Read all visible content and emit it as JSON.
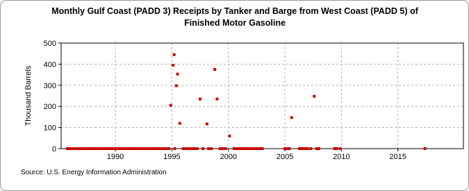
{
  "chart_data": {
    "type": "scatter",
    "title": [
      "Monthly Gulf Coast (PADD 3) Receipts by Tanker and Barge from West Coast (PADD 5) of",
      "Finished Motor Gasoline"
    ],
    "y_label": "Thousand Barrels",
    "source": "Source: U.S. Energy Information Administration",
    "color": "#cc0000",
    "grid": true,
    "xlim": [
      1985.2,
      2020.8
    ],
    "xticks": [
      1990,
      1995,
      2000,
      2005,
      2010,
      2015
    ],
    "ylim": [
      0,
      500
    ],
    "yticks": [
      0,
      100,
      200,
      300,
      400,
      500
    ],
    "x": [
      1985.75,
      1986,
      1986.25,
      1986.5,
      1986.75,
      1987,
      1987.25,
      1987.5,
      1987.75,
      1988,
      1988.25,
      1988.5,
      1988.75,
      1989,
      1989.25,
      1989.5,
      1989.75,
      1990,
      1990.25,
      1990.5,
      1990.75,
      1991,
      1991.25,
      1991.5,
      1991.75,
      1992,
      1992.25,
      1992.5,
      1992.75,
      1993,
      1993.25,
      1993.5,
      1993.75,
      1994,
      1994.25,
      1994.5,
      1994.75,
      1995.25,
      1996,
      1996.25,
      1996.5,
      1996.75,
      1997,
      1997.25,
      1997.75,
      1998.25,
      1998.5,
      1999.25,
      1999.5,
      1999.75,
      2000.5,
      2000.75,
      2001,
      2001.25,
      2001.5,
      2001.75,
      2002,
      2002.25,
      2002.5,
      2002.75,
      2003,
      2005,
      2005.2,
      2005.4,
      2006.3,
      2006.5,
      2006.7,
      2006.8,
      2007,
      2007.3,
      2007.8,
      2008,
      2009.4,
      2009.6,
      2009.9,
      2017.4,
      1994.9,
      1995.2,
      1995.1,
      1995.5,
      1995.4,
      1995.7,
      1997.5,
      1998.1,
      1998.8,
      1999,
      2000.1,
      2005.6,
      2007.6
    ],
    "values": [
      0,
      0,
      0,
      0,
      0,
      0,
      0,
      0,
      0,
      0,
      0,
      0,
      0,
      0,
      0,
      0,
      0,
      0,
      0,
      0,
      0,
      0,
      0,
      0,
      0,
      0,
      0,
      0,
      0,
      0,
      0,
      0,
      0,
      0,
      0,
      0,
      0,
      0,
      0,
      0,
      0,
      0,
      0,
      0,
      0,
      0,
      0,
      0,
      0,
      0,
      0,
      0,
      0,
      0,
      0,
      0,
      0,
      0,
      0,
      0,
      0,
      0,
      0,
      0,
      0,
      0,
      0,
      0,
      0,
      0,
      0,
      0,
      0,
      0,
      0,
      0,
      205,
      445,
      395,
      353,
      298,
      120,
      235,
      117,
      375,
      235,
      60,
      147,
      248
    ]
  }
}
